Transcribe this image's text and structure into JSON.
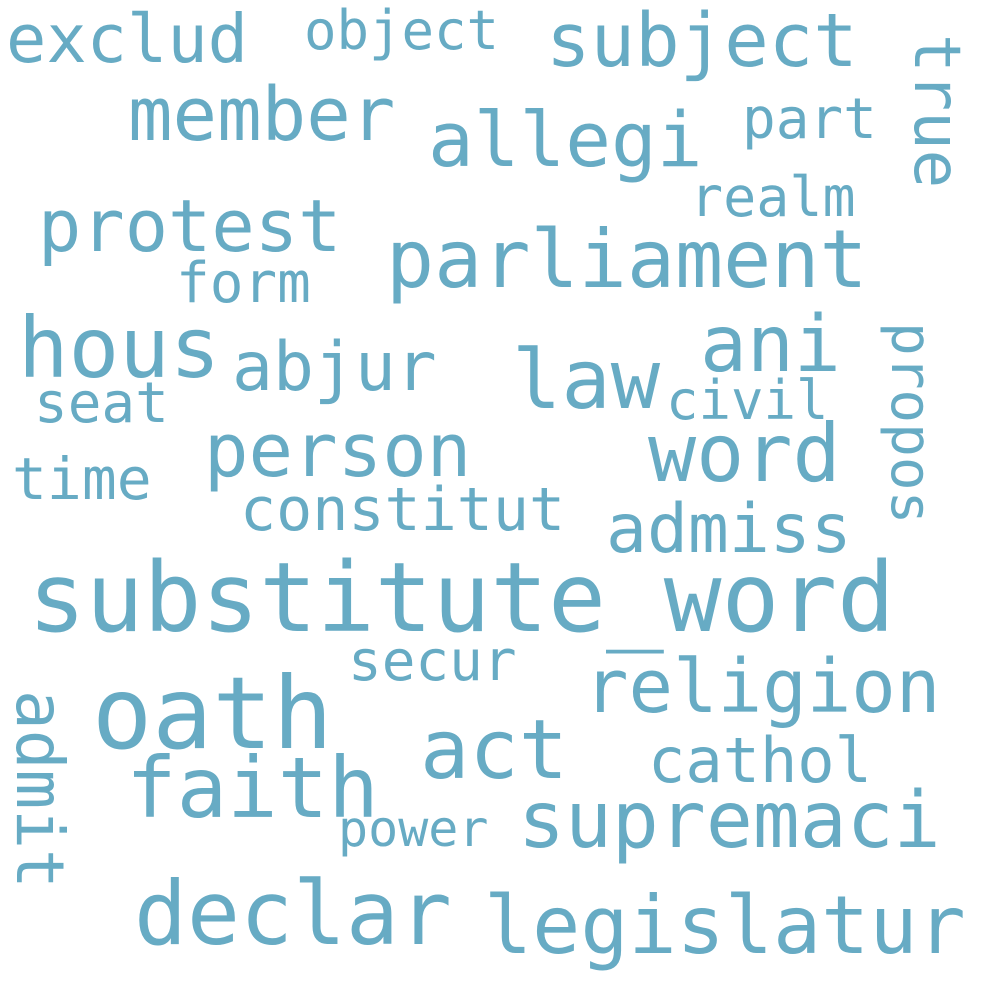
{
  "word_cloud": {
    "color": "#67abc4",
    "words": [
      "substitute_word",
      "oath",
      "declar",
      "parliament",
      "legislatur",
      "supremaci",
      "faith",
      "hous",
      "act",
      "religion",
      "protest",
      "allegi",
      "member",
      "subject",
      "word",
      "person",
      "ani",
      "law",
      "abjur",
      "exclud",
      "admiss",
      "admit",
      "cathol",
      "constitut",
      "propos",
      "true",
      "secur",
      "object",
      "part",
      "realm",
      "form",
      "seat",
      "civil",
      "time",
      "power"
    ]
  }
}
